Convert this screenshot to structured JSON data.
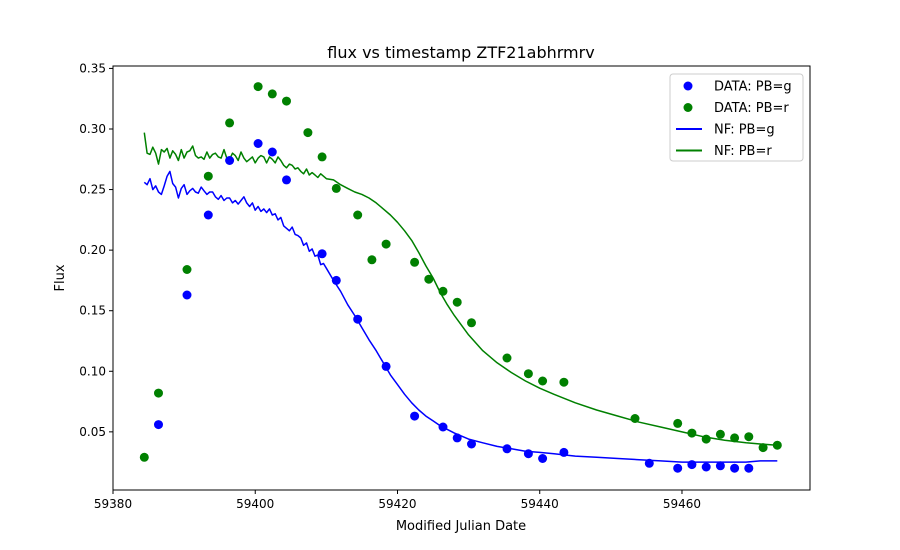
{
  "chart_data": {
    "type": "scatter",
    "title": "flux vs timestamp ZTF21abhrmrv",
    "xlabel": "Modified Julian Date",
    "ylabel": "Flux",
    "xlim": [
      59380,
      59478
    ],
    "ylim": [
      0.002,
      0.352
    ],
    "xticks": [
      59380,
      59400,
      59420,
      59440,
      59460
    ],
    "yticks": [
      0.05,
      0.1,
      0.15,
      0.2,
      0.25,
      0.3,
      0.35
    ],
    "xtick_labels": [
      "59380",
      "59400",
      "59420",
      "59440",
      "59460"
    ],
    "ytick_labels": [
      "0.05",
      "0.10",
      "0.15",
      "0.20",
      "0.25",
      "0.30",
      "0.35"
    ],
    "grid": false,
    "legend_position": "top-right",
    "colors": {
      "g": "#0000ff",
      "r": "#008000"
    },
    "series": [
      {
        "name": "DATA: PB=g",
        "kind": "scatter",
        "color": "#0000ff",
        "x": [
          59386.4,
          59390.4,
          59393.4,
          59396.4,
          59400.4,
          59402.4,
          59404.4,
          59409.4,
          59411.4,
          59414.4,
          59418.4,
          59422.4,
          59426.4,
          59428.4,
          59430.4,
          59435.4,
          59438.4,
          59440.4,
          59443.4,
          59455.4,
          59459.4,
          59461.4,
          59463.4,
          59465.4,
          59467.4,
          59469.4
        ],
        "y": [
          0.056,
          0.163,
          0.229,
          0.274,
          0.288,
          0.281,
          0.258,
          0.197,
          0.175,
          0.143,
          0.104,
          0.063,
          0.054,
          0.045,
          0.04,
          0.036,
          0.032,
          0.028,
          0.033,
          0.024,
          0.02,
          0.023,
          0.021,
          0.022,
          0.02,
          0.02
        ]
      },
      {
        "name": "DATA: PB=r",
        "kind": "scatter",
        "color": "#008000",
        "x": [
          59384.4,
          59386.4,
          59390.4,
          59393.4,
          59396.4,
          59400.4,
          59402.4,
          59404.4,
          59407.4,
          59409.4,
          59411.4,
          59414.4,
          59416.4,
          59418.4,
          59422.4,
          59424.4,
          59426.4,
          59428.4,
          59430.4,
          59435.4,
          59438.4,
          59440.4,
          59443.4,
          59453.4,
          59459.4,
          59461.4,
          59463.4,
          59465.4,
          59467.4,
          59469.4,
          59471.4,
          59473.4
        ],
        "y": [
          0.029,
          0.082,
          0.184,
          0.261,
          0.305,
          0.335,
          0.329,
          0.323,
          0.297,
          0.277,
          0.251,
          0.229,
          0.192,
          0.205,
          0.19,
          0.176,
          0.166,
          0.157,
          0.14,
          0.111,
          0.098,
          0.092,
          0.091,
          0.061,
          0.057,
          0.049,
          0.044,
          0.048,
          0.045,
          0.046,
          0.037,
          0.039
        ]
      },
      {
        "name": "NF: PB=g",
        "kind": "line",
        "color": "#0000ff",
        "x": [
          59384.4,
          59384.8,
          59385.2,
          59385.6,
          59386.0,
          59386.4,
          59386.8,
          59387.2,
          59387.6,
          59388.0,
          59388.4,
          59388.8,
          59389.2,
          59389.6,
          59390.0,
          59390.4,
          59390.8,
          59391.2,
          59391.6,
          59392.0,
          59392.4,
          59392.8,
          59393.2,
          59393.6,
          59394.0,
          59394.4,
          59394.8,
          59395.2,
          59395.6,
          59396.0,
          59396.4,
          59396.8,
          59397.2,
          59397.6,
          59398.0,
          59398.4,
          59398.8,
          59399.2,
          59399.6,
          59400.0,
          59400.4,
          59400.8,
          59401.2,
          59401.6,
          59402.0,
          59402.4,
          59402.8,
          59403.2,
          59403.6,
          59404.0,
          59404.4,
          59404.8,
          59405.2,
          59405.6,
          59406.0,
          59406.4,
          59406.8,
          59407.2,
          59407.6,
          59408.0,
          59408.4,
          59408.8,
          59409.2,
          59409.6,
          59410.0,
          59411,
          59412,
          59413,
          59414,
          59415,
          59416,
          59417,
          59418,
          59419,
          59420,
          59421,
          59422,
          59423,
          59424,
          59425,
          59426,
          59427,
          59428,
          59430,
          59432,
          59434,
          59436,
          59438,
          59440,
          59442,
          59445,
          59448,
          59451,
          59454,
          59457,
          59460,
          59463,
          59466,
          59469,
          59471,
          59473.4
        ],
        "y": [
          0.256,
          0.254,
          0.259,
          0.25,
          0.253,
          0.248,
          0.246,
          0.253,
          0.261,
          0.265,
          0.255,
          0.252,
          0.243,
          0.251,
          0.254,
          0.246,
          0.249,
          0.251,
          0.248,
          0.247,
          0.252,
          0.249,
          0.246,
          0.248,
          0.248,
          0.244,
          0.242,
          0.245,
          0.241,
          0.243,
          0.243,
          0.239,
          0.241,
          0.238,
          0.241,
          0.244,
          0.239,
          0.236,
          0.239,
          0.233,
          0.236,
          0.232,
          0.234,
          0.231,
          0.234,
          0.229,
          0.23,
          0.225,
          0.227,
          0.22,
          0.218,
          0.216,
          0.219,
          0.213,
          0.212,
          0.21,
          0.204,
          0.206,
          0.199,
          0.201,
          0.195,
          0.196,
          0.188,
          0.189,
          0.185,
          0.175,
          0.166,
          0.155,
          0.146,
          0.136,
          0.126,
          0.117,
          0.107,
          0.097,
          0.089,
          0.081,
          0.074,
          0.068,
          0.063,
          0.059,
          0.055,
          0.052,
          0.049,
          0.044,
          0.041,
          0.038,
          0.036,
          0.034,
          0.033,
          0.032,
          0.03,
          0.029,
          0.028,
          0.027,
          0.026,
          0.025,
          0.025,
          0.025,
          0.025,
          0.026,
          0.026
        ]
      },
      {
        "name": "NF: PB=r",
        "kind": "line",
        "color": "#008000",
        "x": [
          59384.4,
          59384.8,
          59385.2,
          59385.6,
          59386.0,
          59386.4,
          59386.8,
          59387.2,
          59387.6,
          59388.0,
          59388.4,
          59388.8,
          59389.2,
          59389.6,
          59390.0,
          59390.4,
          59390.8,
          59391.2,
          59391.6,
          59392.0,
          59392.4,
          59392.8,
          59393.2,
          59393.6,
          59394.0,
          59394.4,
          59394.8,
          59395.2,
          59395.6,
          59396.0,
          59396.4,
          59396.8,
          59397.2,
          59397.6,
          59398.0,
          59398.4,
          59398.8,
          59399.2,
          59399.6,
          59400.0,
          59400.4,
          59400.8,
          59401.2,
          59401.6,
          59402.0,
          59402.4,
          59402.8,
          59403.2,
          59403.6,
          59404.0,
          59404.4,
          59404.8,
          59405.2,
          59405.6,
          59406.0,
          59406.4,
          59406.8,
          59407.2,
          59407.6,
          59408.0,
          59408.4,
          59408.8,
          59409.2,
          59409.6,
          59410.0,
          59411,
          59412,
          59413,
          59414,
          59415,
          59416,
          59417,
          59418,
          59419,
          59420,
          59421,
          59422,
          59423,
          59424,
          59425,
          59426,
          59427,
          59428,
          59430,
          59432,
          59434,
          59436,
          59438,
          59440,
          59442,
          59445,
          59448,
          59451,
          59454,
          59457,
          59460,
          59463,
          59466,
          59469,
          59471,
          59473.4
        ],
        "y": [
          0.297,
          0.28,
          0.279,
          0.285,
          0.28,
          0.271,
          0.283,
          0.281,
          0.284,
          0.276,
          0.282,
          0.279,
          0.274,
          0.283,
          0.276,
          0.281,
          0.282,
          0.286,
          0.278,
          0.276,
          0.277,
          0.275,
          0.281,
          0.276,
          0.279,
          0.28,
          0.277,
          0.276,
          0.283,
          0.276,
          0.275,
          0.28,
          0.278,
          0.274,
          0.281,
          0.276,
          0.273,
          0.275,
          0.277,
          0.272,
          0.276,
          0.278,
          0.277,
          0.272,
          0.277,
          0.275,
          0.272,
          0.277,
          0.274,
          0.27,
          0.268,
          0.271,
          0.27,
          0.267,
          0.268,
          0.265,
          0.263,
          0.267,
          0.262,
          0.264,
          0.262,
          0.26,
          0.263,
          0.261,
          0.259,
          0.258,
          0.254,
          0.251,
          0.248,
          0.246,
          0.243,
          0.239,
          0.234,
          0.229,
          0.223,
          0.216,
          0.208,
          0.198,
          0.187,
          0.177,
          0.165,
          0.155,
          0.146,
          0.13,
          0.117,
          0.107,
          0.099,
          0.092,
          0.086,
          0.081,
          0.074,
          0.068,
          0.063,
          0.058,
          0.054,
          0.05,
          0.046,
          0.043,
          0.041,
          0.04,
          0.039
        ]
      }
    ]
  }
}
